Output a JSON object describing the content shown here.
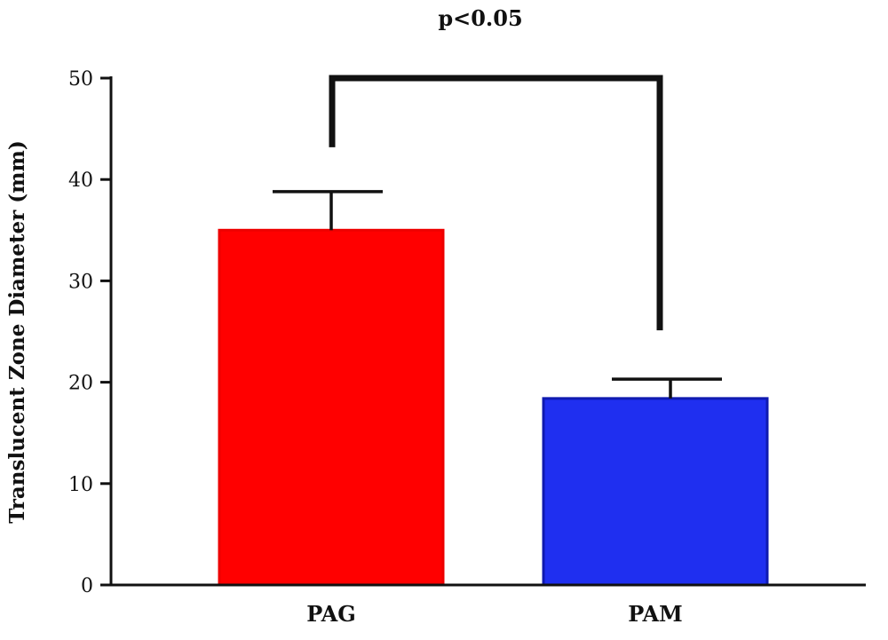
{
  "chart_data": {
    "type": "bar",
    "categories": [
      "PAG",
      "PAM"
    ],
    "values": [
      35,
      18.4
    ],
    "error": [
      3.8,
      1.9
    ],
    "colors": [
      "#ff0000",
      "#1f2ff0"
    ],
    "xlabel": "",
    "ylabel": "Translucent Zone Diameter (mm)",
    "ylim": [
      0,
      50
    ],
    "yticks": [
      "0",
      "10",
      "20",
      "30",
      "40",
      "50"
    ],
    "grid": false,
    "legend": "none",
    "annotations": {
      "significance_label": "p<0.05"
    }
  }
}
